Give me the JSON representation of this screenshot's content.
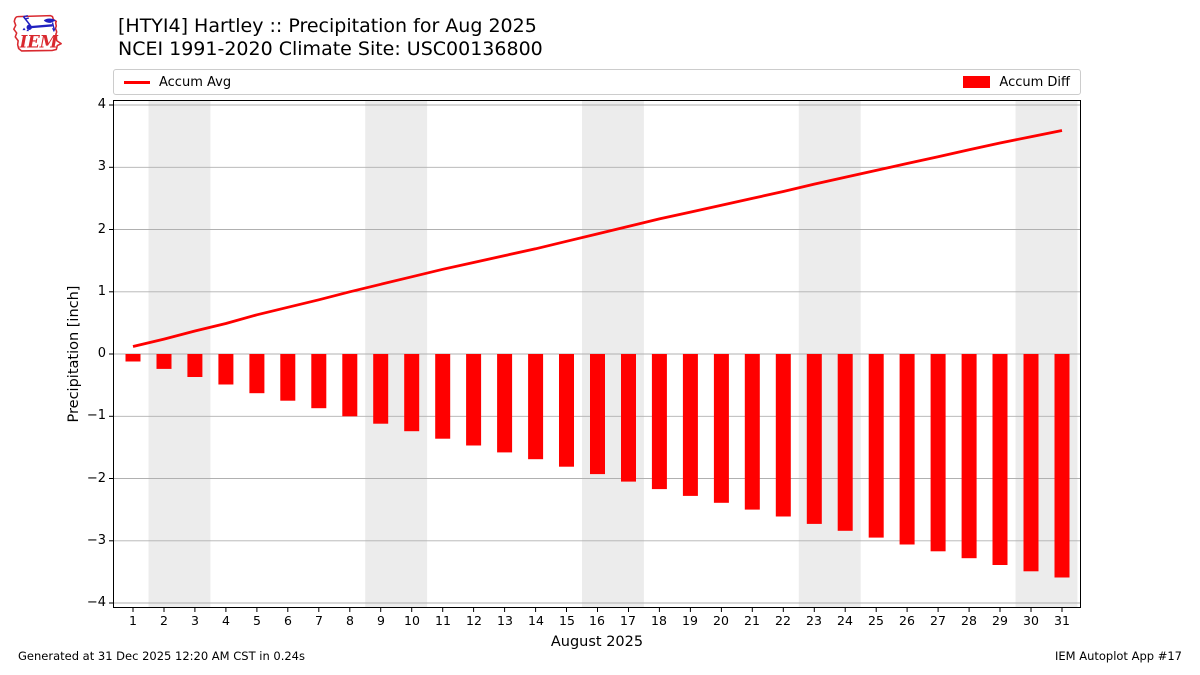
{
  "header": {
    "title": "[HTYI4] Hartley :: Precipitation for Aug 2025",
    "subtitle": "NCEI 1991-2020 Climate Site: USC00136800",
    "logo": "iem-logo",
    "logo_text": "IEM"
  },
  "legend": {
    "items": [
      {
        "label": "Accum Avg",
        "swatch": "line",
        "color": "#ff0000"
      },
      {
        "label": "Accum Diff",
        "swatch": "patch",
        "color": "#ff0000"
      }
    ]
  },
  "footer": {
    "generated": "Generated at 31 Dec 2025 12:20 AM CST in 0.24s",
    "app": "IEM Autoplot App #17"
  },
  "colors": {
    "accent_red": "#ff0000",
    "weekend_band": "#ececec",
    "gridline": "#b0b0b0",
    "frame": "#000000",
    "logo_red": "#d9292f",
    "logo_blue": "#2020c0"
  },
  "chart_data": {
    "type": "line+bar",
    "title": "[HTYI4] Hartley :: Precipitation for Aug 2025",
    "subtitle": "NCEI 1991-2020 Climate Site: USC00136800",
    "xlabel": "August 2025",
    "ylabel": "Precipitation [inch]",
    "ylim": [
      -4,
      4
    ],
    "yticks": [
      4,
      3,
      2,
      1,
      0,
      -1,
      -2,
      -3,
      -4
    ],
    "grid": true,
    "legend_position": "top",
    "x": [
      1,
      2,
      3,
      4,
      5,
      6,
      7,
      8,
      9,
      10,
      11,
      12,
      13,
      14,
      15,
      16,
      17,
      18,
      19,
      20,
      21,
      22,
      23,
      24,
      25,
      26,
      27,
      28,
      29,
      30,
      31
    ],
    "weekend_bands": [
      [
        1.5,
        3.5
      ],
      [
        8.5,
        10.5
      ],
      [
        15.5,
        17.5
      ],
      [
        22.5,
        24.5
      ],
      [
        29.5,
        31.5
      ]
    ],
    "series": [
      {
        "name": "Accum Avg",
        "kind": "line",
        "color": "#ff0000",
        "values": [
          0.12,
          0.24,
          0.37,
          0.49,
          0.63,
          0.75,
          0.87,
          1.0,
          1.12,
          1.24,
          1.36,
          1.47,
          1.58,
          1.69,
          1.81,
          1.93,
          2.05,
          2.17,
          2.28,
          2.39,
          2.5,
          2.61,
          2.73,
          2.84,
          2.95,
          3.06,
          3.17,
          3.28,
          3.39,
          3.49,
          3.59
        ]
      },
      {
        "name": "Accum Diff",
        "kind": "bar",
        "color": "#ff0000",
        "values": [
          -0.12,
          -0.24,
          -0.37,
          -0.49,
          -0.63,
          -0.75,
          -0.87,
          -1.0,
          -1.12,
          -1.24,
          -1.36,
          -1.47,
          -1.58,
          -1.69,
          -1.81,
          -1.93,
          -2.05,
          -2.17,
          -2.28,
          -2.39,
          -2.5,
          -2.61,
          -2.73,
          -2.84,
          -2.95,
          -3.06,
          -3.17,
          -3.28,
          -3.39,
          -3.49,
          -3.59
        ]
      }
    ]
  }
}
